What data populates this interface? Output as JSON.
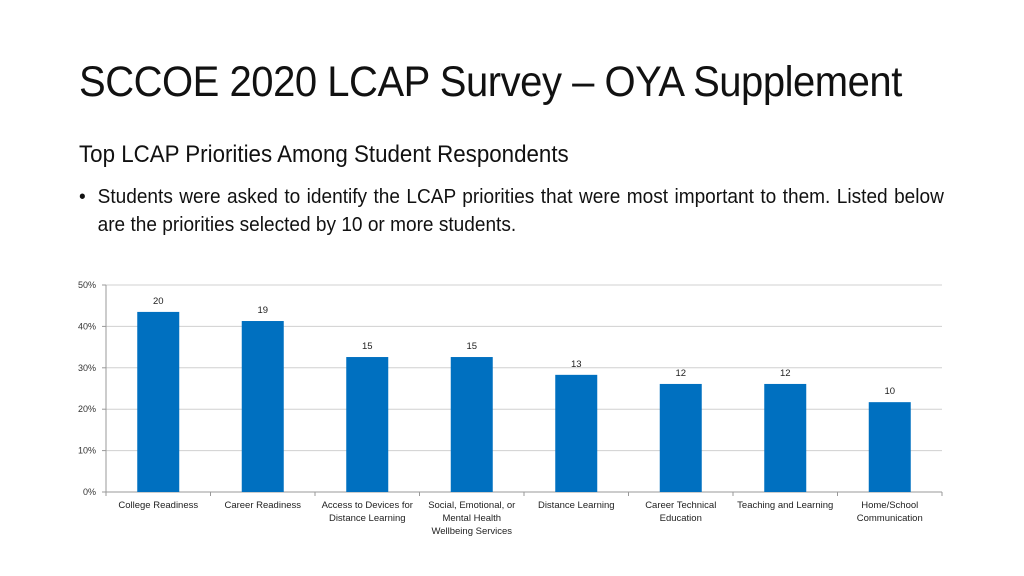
{
  "slide": {
    "title": "SCCOE 2020 LCAP Survey – OYA Supplement",
    "subtitle": "Top LCAP Priorities Among Student Respondents",
    "bullet_symbol": "•",
    "bullet_text": "Students were asked to identify the LCAP priorities that were most important to them.  Listed below are the priorities selected by 10 or more students."
  },
  "chart_data": {
    "type": "bar",
    "title": "",
    "xlabel": "",
    "ylabel": "",
    "categories": [
      "College Readiness",
      "Career Readiness",
      "Access to Devices for Distance Learning",
      "Social, Emotional, or Mental Health Wellbeing Services",
      "Distance Learning",
      "Career Technical Education",
      "Teaching and Learning",
      "Home/School Communication"
    ],
    "category_lines": [
      [
        "College Readiness"
      ],
      [
        "Career Readiness"
      ],
      [
        "Access to Devices for",
        "Distance Learning"
      ],
      [
        "Social, Emotional, or",
        "Mental Health",
        "Wellbeing Services"
      ],
      [
        "Distance Learning"
      ],
      [
        "Career Technical",
        "Education"
      ],
      [
        "Teaching and Learning"
      ],
      [
        "Home/School",
        "Communication"
      ]
    ],
    "values_percent": [
      43.5,
      41.3,
      32.6,
      32.6,
      28.3,
      26.1,
      26.1,
      21.7
    ],
    "data_labels": [
      "20",
      "19",
      "15",
      "15",
      "13",
      "12",
      "12",
      "10"
    ],
    "ylim": [
      0,
      50
    ],
    "yticks": [
      "0%",
      "10%",
      "20%",
      "30%",
      "40%",
      "50%"
    ],
    "ytick_values": [
      0,
      10,
      20,
      30,
      40,
      50
    ],
    "grid": true,
    "legend": "none",
    "bar_color": "#0070C0",
    "grid_color": "#D0D0D0"
  }
}
